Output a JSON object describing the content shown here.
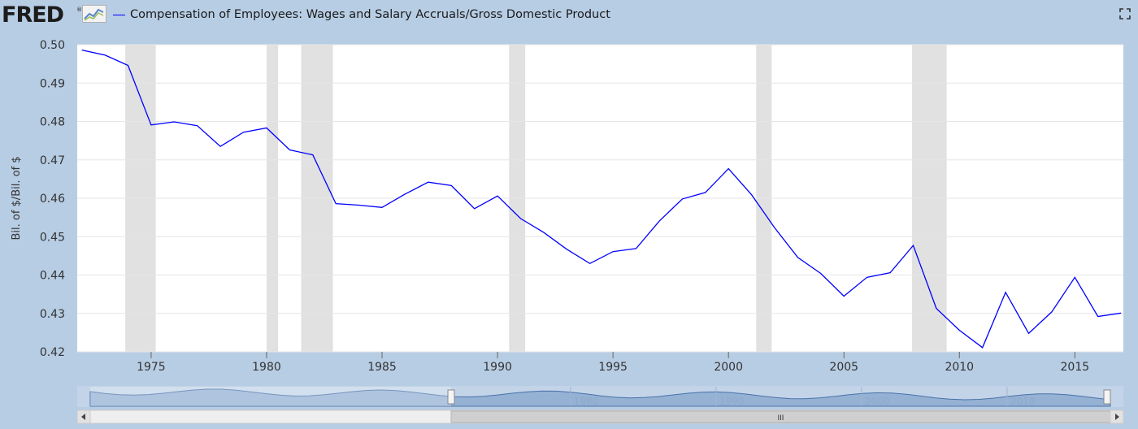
{
  "header": {
    "logo_text": "FRED",
    "logo_reg": "®",
    "logo_icon": "line-graph-icon",
    "series_title": "Compensation of Employees: Wages and Salary Accruals/Gross Domestic Product",
    "fullscreen_icon": "fullscreen-icon"
  },
  "colors": {
    "background": "#b7cde4",
    "plot_background": "#ffffff",
    "line": "#0000ff",
    "recession": "#e1e1e1",
    "gridline": "#e6e6e6"
  },
  "chart_data": {
    "type": "line",
    "title": "",
    "xlabel": "",
    "ylabel": "Bil. of $/Bil. of $",
    "xlim": [
      1971.8,
      2017.1
    ],
    "ylim": [
      0.42,
      0.5
    ],
    "x_ticks": [
      "1975",
      "1980",
      "1985",
      "1990",
      "1995",
      "2000",
      "2005",
      "2010",
      "2015"
    ],
    "y_ticks": [
      "0.42",
      "0.43",
      "0.44",
      "0.45",
      "0.46",
      "0.47",
      "0.48",
      "0.49",
      "0.50"
    ],
    "grid": true,
    "legend": "top-left",
    "series": [
      {
        "name": "Compensation of Employees: Wages and Salary Accruals/Gross Domestic Product",
        "x": [
          1972,
          1973,
          1974,
          1975,
          1976,
          1977,
          1978,
          1979,
          1980,
          1981,
          1982,
          1983,
          1984,
          1985,
          1986,
          1987,
          1988,
          1989,
          1990,
          1991,
          1992,
          1993,
          1994,
          1995,
          1996,
          1997,
          1998,
          1999,
          2000,
          2001,
          2002,
          2003,
          2004,
          2005,
          2006,
          2007,
          2008,
          2009,
          2010,
          2011,
          2012,
          2013,
          2014,
          2015,
          2016,
          2017
        ],
        "values": [
          0.4986,
          0.4973,
          0.4946,
          0.4791,
          0.4799,
          0.4789,
          0.4735,
          0.4772,
          0.4783,
          0.4726,
          0.4713,
          0.4586,
          0.4582,
          0.4576,
          0.4611,
          0.4642,
          0.4633,
          0.4573,
          0.4606,
          0.4547,
          0.4511,
          0.4467,
          0.443,
          0.4461,
          0.4469,
          0.454,
          0.4598,
          0.4615,
          0.4677,
          0.4609,
          0.4523,
          0.4446,
          0.4404,
          0.4345,
          0.4394,
          0.4406,
          0.4477,
          0.4313,
          0.4256,
          0.4211,
          0.4355,
          0.4248,
          0.4304,
          0.4394,
          0.4292,
          0.4301
        ]
      }
    ],
    "recessions": [
      [
        1973.88,
        1975.2
      ],
      [
        1980.0,
        1980.5
      ],
      [
        1981.5,
        1982.87
      ],
      [
        1990.5,
        1991.2
      ],
      [
        2001.2,
        2001.87
      ],
      [
        2007.95,
        2009.45
      ]
    ]
  },
  "navigator": {
    "labels": [
      "1980",
      "1990",
      "2000",
      "2010"
    ],
    "range_start": 1971.8,
    "range_end": 2017.1,
    "full_start": 1947,
    "full_end": 2017.1,
    "scroll_grip": "III"
  }
}
